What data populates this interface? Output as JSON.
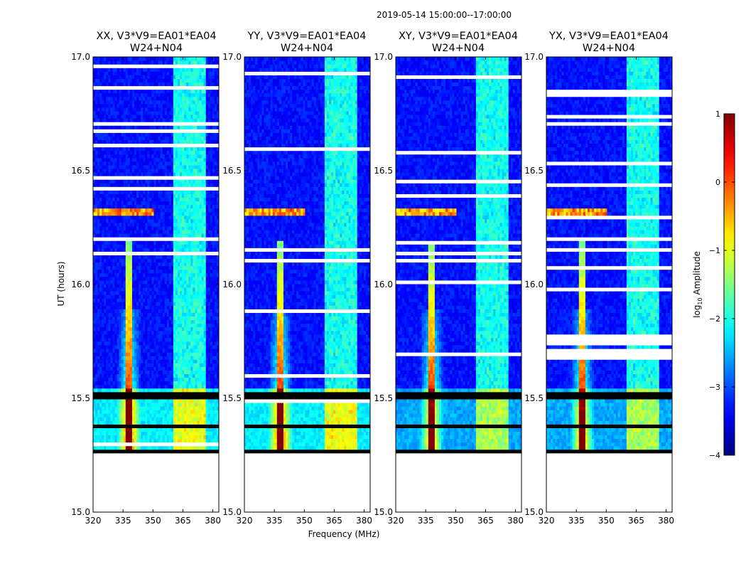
{
  "suptitle": "2019-05-14  15:00:00--17:00:00",
  "colors": {
    "background": "#ffffff",
    "masked_row": "#000000",
    "flagged_row": "#ffffff",
    "axes": "#000000"
  },
  "chart_data": {
    "type": "heatmap",
    "colormap": "jet",
    "xlabel": "Frequency (MHz)",
    "ylabel": "UT (hours)",
    "colorbar": {
      "label_prefix": "log",
      "label_sub": "10",
      "label_suffix": " Amplitude",
      "range": [
        -4,
        1
      ],
      "ticks": [
        1,
        0,
        -1,
        -2,
        -3,
        -4
      ],
      "tick_labels": [
        "1",
        "0",
        "−1",
        "−2",
        "−3",
        "−4"
      ]
    },
    "xlim": [
      320,
      383
    ],
    "ylim": [
      15.0,
      17.0
    ],
    "xticks": [
      320,
      335,
      350,
      365,
      380
    ],
    "xtick_labels": [
      "320",
      "335",
      "350",
      "365",
      "380"
    ],
    "yticks": [
      15.0,
      15.5,
      16.0,
      16.5,
      17.0
    ],
    "ytick_labels": [
      "15.0",
      "15.5",
      "16.0",
      "16.5",
      "17.0"
    ],
    "data_time_range": [
      15.26,
      17.0
    ],
    "features": {
      "strong_line_mhz": 338,
      "strong_line_onset_ut": 16.2,
      "rfi_band_mhz": [
        360,
        377
      ],
      "masked_ut_ranges": [
        [
          15.26,
          15.28
        ],
        [
          15.37,
          15.39
        ],
        [
          15.5,
          15.53
        ]
      ],
      "rfi_burst_ut": 16.32
    },
    "panels": [
      {
        "key": "xx",
        "title_line1": "XX, V3*V9=EA01*EA04",
        "title_line2": "W24+N04"
      },
      {
        "key": "yy",
        "title_line1": "YY, V3*V9=EA01*EA04",
        "title_line2": "W24+N04"
      },
      {
        "key": "xy",
        "title_line1": "XY, V3*V9=EA01*EA04",
        "title_line2": "W24+N04"
      },
      {
        "key": "yx",
        "title_line1": "YX, V3*V9=EA01*EA04",
        "title_line2": "W24+N04"
      }
    ]
  }
}
